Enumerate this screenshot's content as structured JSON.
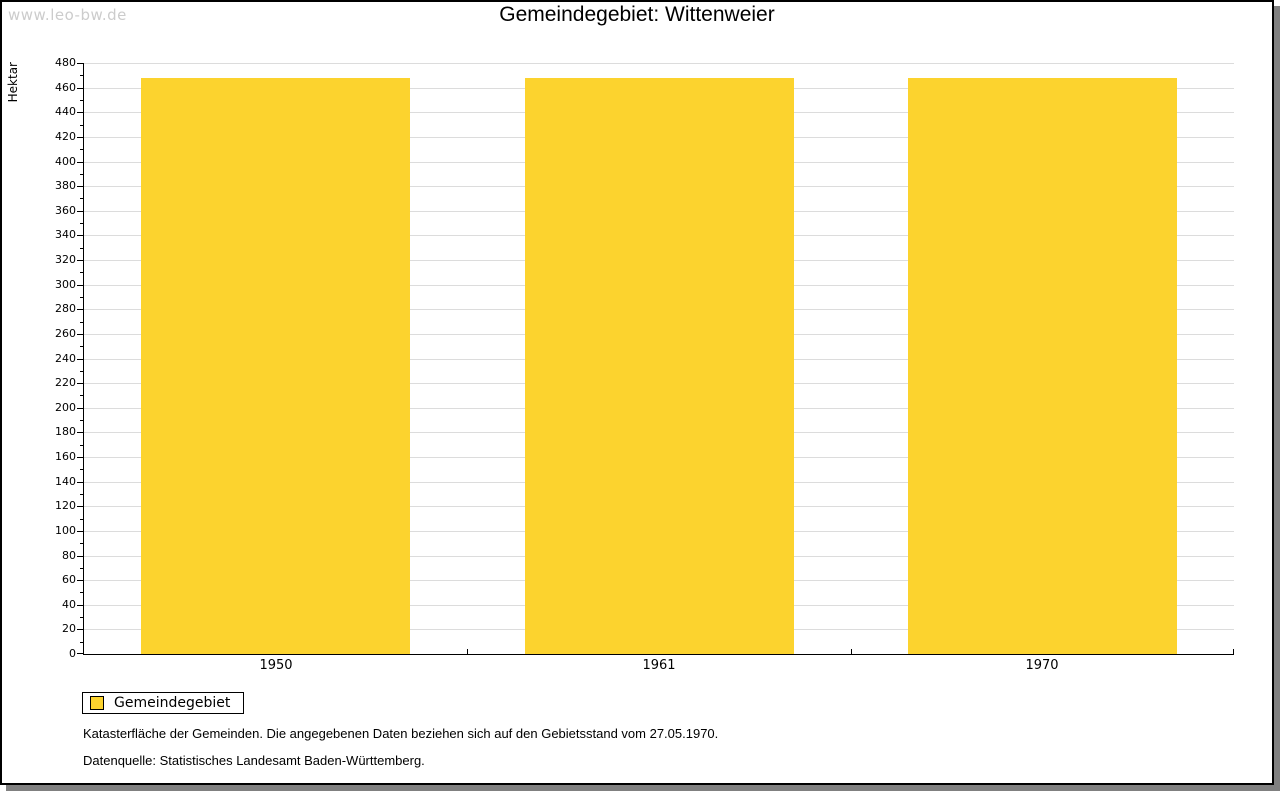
{
  "watermark": "www.leo-bw.de",
  "chart_data": {
    "type": "bar",
    "title": "Gemeindegebiet: Wittenweier",
    "categories": [
      "1950",
      "1961",
      "1970"
    ],
    "series": [
      {
        "name": "Gemeindegebiet",
        "values": [
          468,
          468,
          468
        ]
      }
    ],
    "xlabel": "",
    "ylabel": "Hektar",
    "ylim": [
      0,
      480
    ],
    "ytick_step": 20,
    "minor_tick_step": 10,
    "grid": true,
    "legend_position": "bottom-left",
    "colors": {
      "bar": "#fcd32e",
      "gridline": "#dcdcdc",
      "axis": "#000000",
      "watermark": "#cccccc",
      "frame_shadow": "#808080"
    }
  },
  "footnotes": [
    "Katasterfläche der Gemeinden. Die angegebenen Daten beziehen sich auf den Gebietsstand vom 27.05.1970.",
    "Datenquelle: Statistisches Landesamt Baden-Württemberg."
  ]
}
